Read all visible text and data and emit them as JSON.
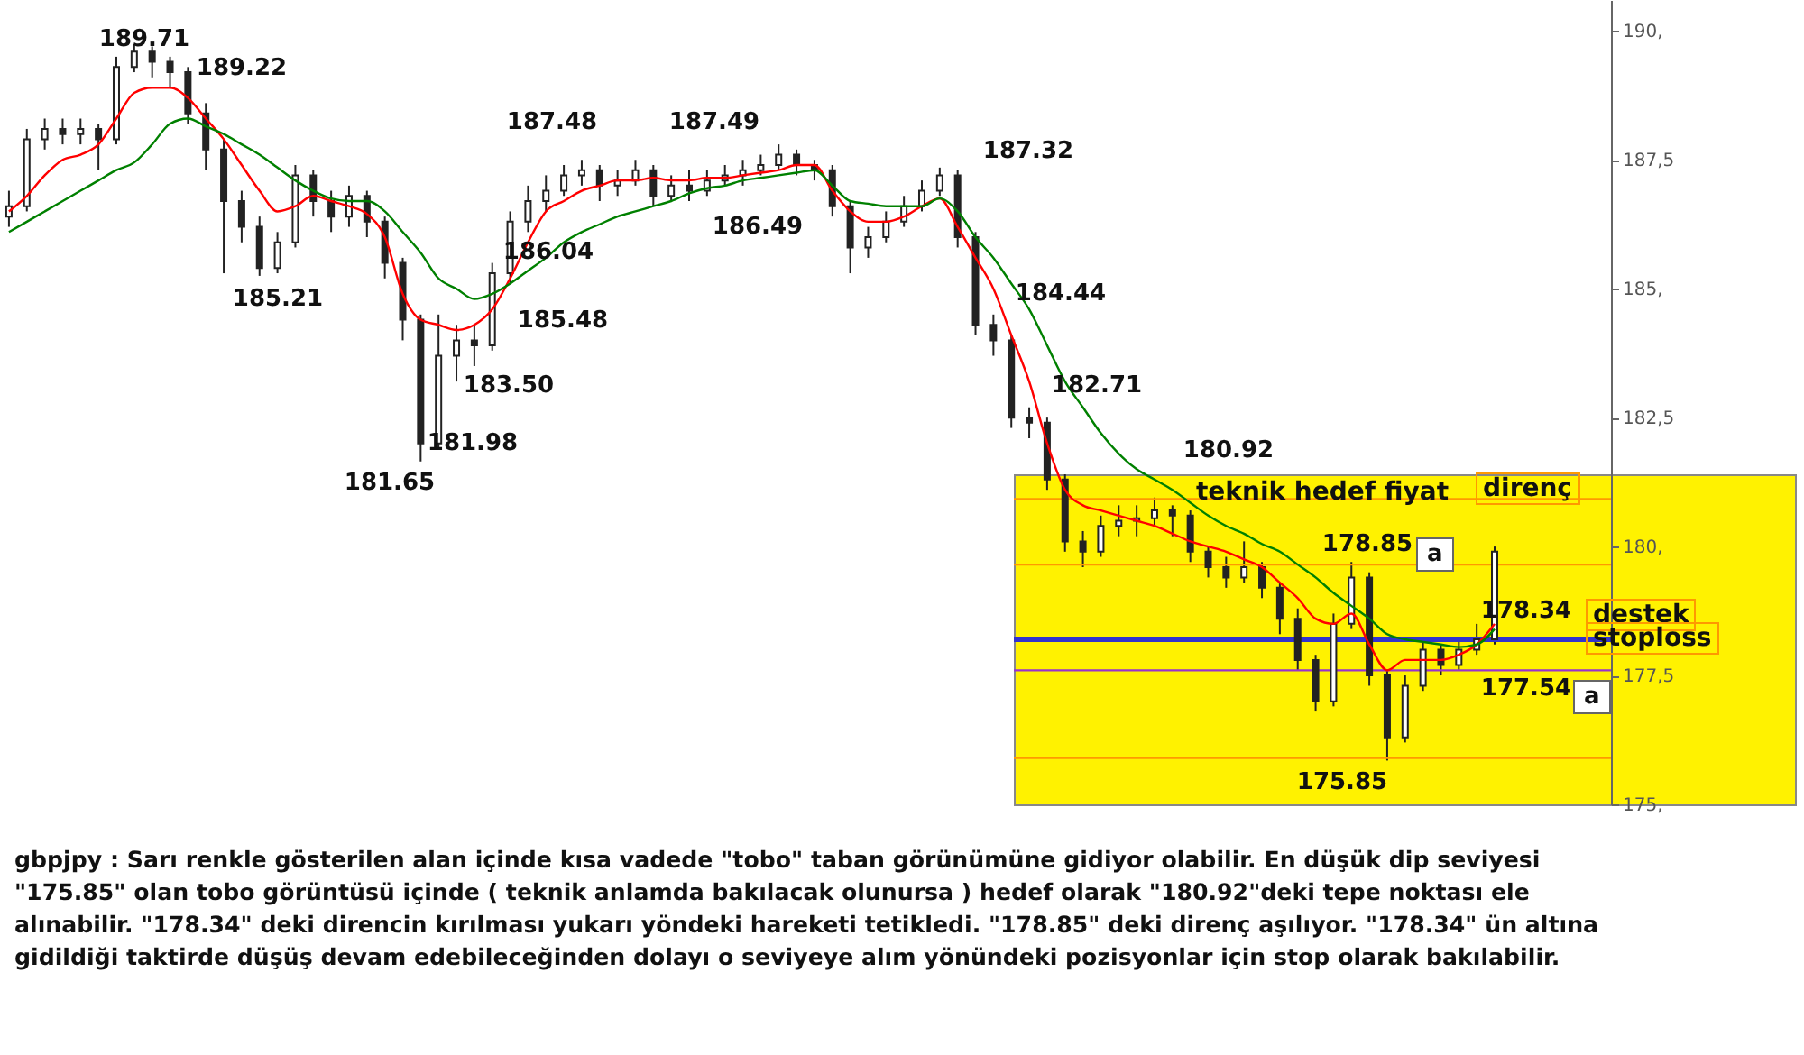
{
  "chart_data": {
    "type": "candlestick",
    "categories": [
      null,
      null,
      null,
      null,
      null,
      null,
      null,
      null,
      null,
      null,
      null,
      null,
      null,
      null,
      null,
      null,
      null,
      null,
      null,
      null,
      null,
      null,
      null,
      null,
      null,
      null,
      null,
      null,
      null,
      null,
      null,
      null,
      null,
      null,
      null,
      null,
      null,
      null,
      null,
      null,
      null,
      null,
      null,
      null,
      null,
      null,
      null,
      null,
      null,
      null,
      null,
      null,
      null,
      null,
      null,
      null,
      null,
      null,
      null,
      null,
      null,
      null,
      null,
      null,
      null,
      null,
      null,
      null,
      null,
      null,
      null,
      null,
      null,
      null,
      null,
      null,
      null,
      null,
      null,
      null,
      null,
      null,
      null,
      null,
      null,
      null,
      null,
      null,
      null,
      null
    ],
    "series": [
      {
        "color": "#222222",
        "ohlc": [
          [
            186.4,
            186.9,
            186.2,
            186.6
          ],
          [
            186.6,
            188.1,
            186.5,
            187.9
          ],
          [
            187.9,
            188.3,
            187.7,
            188.1
          ],
          [
            188.1,
            188.3,
            187.8,
            188.0
          ],
          [
            188.0,
            188.3,
            187.8,
            188.1
          ],
          [
            188.1,
            188.2,
            187.3,
            187.9
          ],
          [
            187.9,
            189.5,
            187.8,
            189.3
          ],
          [
            189.3,
            189.75,
            189.2,
            189.6
          ],
          [
            189.6,
            189.7,
            189.1,
            189.4
          ],
          [
            189.4,
            189.5,
            188.9,
            189.2
          ],
          [
            189.2,
            189.3,
            188.2,
            188.4
          ],
          [
            188.4,
            188.6,
            187.3,
            187.7
          ],
          [
            187.7,
            187.9,
            185.3,
            186.7
          ],
          [
            186.7,
            186.9,
            185.9,
            186.2
          ],
          [
            186.2,
            186.4,
            185.25,
            185.4
          ],
          [
            185.4,
            186.1,
            185.3,
            185.9
          ],
          [
            185.9,
            187.4,
            185.8,
            187.2
          ],
          [
            187.2,
            187.3,
            186.4,
            186.7
          ],
          [
            186.7,
            186.9,
            186.1,
            186.4
          ],
          [
            186.4,
            187.0,
            186.2,
            186.8
          ],
          [
            186.8,
            186.9,
            186.0,
            186.3
          ],
          [
            186.3,
            186.4,
            185.2,
            185.5
          ],
          [
            185.5,
            185.6,
            184.0,
            184.4
          ],
          [
            184.4,
            184.5,
            181.65,
            182.0
          ],
          [
            182.0,
            184.5,
            181.9,
            183.7
          ],
          [
            183.7,
            184.3,
            183.2,
            184.0
          ],
          [
            184.0,
            184.3,
            183.5,
            183.9
          ],
          [
            183.9,
            185.5,
            183.8,
            185.3
          ],
          [
            185.3,
            186.5,
            185.1,
            186.3
          ],
          [
            186.3,
            187.0,
            186.1,
            186.7
          ],
          [
            186.7,
            187.2,
            186.5,
            186.9
          ],
          [
            186.9,
            187.4,
            186.8,
            187.2
          ],
          [
            187.2,
            187.5,
            187.0,
            187.3
          ],
          [
            187.3,
            187.4,
            186.7,
            187.0
          ],
          [
            187.0,
            187.3,
            186.8,
            187.1
          ],
          [
            187.1,
            187.5,
            187.0,
            187.3
          ],
          [
            187.3,
            187.4,
            186.6,
            186.8
          ],
          [
            186.8,
            187.2,
            186.7,
            187.0
          ],
          [
            187.0,
            187.3,
            186.7,
            186.9
          ],
          [
            186.9,
            187.3,
            186.8,
            187.1
          ],
          [
            187.1,
            187.4,
            187.0,
            187.2
          ],
          [
            187.2,
            187.5,
            187.0,
            187.3
          ],
          [
            187.3,
            187.6,
            187.2,
            187.4
          ],
          [
            187.4,
            187.8,
            187.3,
            187.6
          ],
          [
            187.6,
            187.7,
            187.2,
            187.4
          ],
          [
            187.4,
            187.5,
            187.1,
            187.3
          ],
          [
            187.3,
            187.4,
            186.4,
            186.6
          ],
          [
            186.6,
            186.7,
            185.3,
            185.8
          ],
          [
            185.8,
            186.2,
            185.6,
            186.0
          ],
          [
            186.0,
            186.5,
            185.9,
            186.3
          ],
          [
            186.3,
            186.8,
            186.2,
            186.6
          ],
          [
            186.6,
            187.1,
            186.5,
            186.9
          ],
          [
            186.9,
            187.35,
            186.8,
            187.2
          ],
          [
            187.2,
            187.3,
            185.8,
            186.0
          ],
          [
            186.0,
            186.1,
            184.1,
            184.3
          ],
          [
            184.3,
            184.5,
            183.7,
            184.0
          ],
          [
            184.0,
            184.1,
            182.3,
            182.5
          ],
          [
            182.5,
            182.7,
            182.1,
            182.4
          ],
          [
            182.4,
            182.5,
            181.1,
            181.3
          ],
          [
            181.3,
            181.4,
            179.9,
            180.1
          ],
          [
            180.1,
            180.3,
            179.6,
            179.9
          ],
          [
            179.9,
            180.6,
            179.8,
            180.4
          ],
          [
            180.4,
            180.8,
            180.2,
            180.5
          ],
          [
            180.5,
            180.8,
            180.2,
            180.55
          ],
          [
            180.55,
            180.95,
            180.4,
            180.7
          ],
          [
            180.7,
            180.8,
            180.2,
            180.6
          ],
          [
            180.6,
            180.7,
            179.7,
            179.9
          ],
          [
            179.9,
            180.0,
            179.4,
            179.6
          ],
          [
            179.6,
            179.8,
            179.2,
            179.4
          ],
          [
            179.4,
            180.1,
            179.3,
            179.6
          ],
          [
            179.6,
            179.7,
            179.0,
            179.2
          ],
          [
            179.2,
            179.3,
            178.3,
            178.6
          ],
          [
            178.6,
            178.8,
            177.6,
            177.8
          ],
          [
            177.8,
            177.9,
            176.8,
            177.0
          ],
          [
            177.0,
            178.7,
            176.9,
            178.5
          ],
          [
            178.5,
            179.7,
            178.4,
            179.4
          ],
          [
            179.4,
            179.5,
            177.3,
            177.5
          ],
          [
            177.5,
            177.6,
            175.85,
            176.3
          ],
          [
            176.3,
            177.5,
            176.2,
            177.3
          ],
          [
            177.3,
            178.2,
            177.2,
            178.0
          ],
          [
            178.0,
            178.1,
            177.5,
            177.7
          ],
          [
            177.7,
            178.2,
            177.6,
            178.0
          ],
          [
            178.0,
            178.5,
            177.9,
            178.2
          ],
          [
            178.2,
            180.0,
            178.1,
            179.9
          ],
          null,
          null,
          null,
          null,
          null,
          null
        ]
      },
      {
        "type": "line",
        "color": "#ff0000",
        "values": [
          186.5,
          186.8,
          187.2,
          187.5,
          187.6,
          187.8,
          188.3,
          188.8,
          188.9,
          188.9,
          188.7,
          188.3,
          187.9,
          187.4,
          186.9,
          186.5,
          186.6,
          186.8,
          186.7,
          186.6,
          186.45,
          186.0,
          184.9,
          184.4,
          184.3,
          184.2,
          184.3,
          184.6,
          185.2,
          185.9,
          186.5,
          186.7,
          186.9,
          187.0,
          187.1,
          187.1,
          187.15,
          187.1,
          187.1,
          187.15,
          187.15,
          187.2,
          187.25,
          187.3,
          187.4,
          187.4,
          186.9,
          186.5,
          186.3,
          186.3,
          186.4,
          186.6,
          186.75,
          186.2,
          185.6,
          185.0,
          184.1,
          183.2,
          182.0,
          181.1,
          180.8,
          180.7,
          180.6,
          180.5,
          180.4,
          180.25,
          180.1,
          180.0,
          179.9,
          179.75,
          179.6,
          179.3,
          179.0,
          178.6,
          178.5,
          178.7,
          178.1,
          177.6,
          177.8,
          177.8,
          177.8,
          177.9,
          178.1,
          178.5,
          null,
          null,
          null,
          null,
          null,
          null
        ]
      },
      {
        "type": "line",
        "color": "#008000",
        "values": [
          186.1,
          186.3,
          186.5,
          186.7,
          186.9,
          187.1,
          187.3,
          187.45,
          187.8,
          188.2,
          188.3,
          188.15,
          188.0,
          187.8,
          187.6,
          187.35,
          187.1,
          186.9,
          186.75,
          186.7,
          186.7,
          186.5,
          186.1,
          185.7,
          185.2,
          185.0,
          184.8,
          184.9,
          185.1,
          185.35,
          185.6,
          185.9,
          186.1,
          186.25,
          186.4,
          186.5,
          186.6,
          186.7,
          186.85,
          186.95,
          187.0,
          187.1,
          187.15,
          187.2,
          187.25,
          187.3,
          187.0,
          186.7,
          186.65,
          186.6,
          186.6,
          186.6,
          186.75,
          186.5,
          186.0,
          185.6,
          185.1,
          184.6,
          183.9,
          183.2,
          182.7,
          182.2,
          181.8,
          181.5,
          181.3,
          181.1,
          180.85,
          180.6,
          180.4,
          180.25,
          180.05,
          179.9,
          179.65,
          179.4,
          179.1,
          178.85,
          178.6,
          178.3,
          178.2,
          178.15,
          178.1,
          178.05,
          178.1,
          178.4,
          null,
          null,
          null,
          null,
          null,
          null
        ]
      }
    ],
    "ylim": [
      175,
      190.6
    ],
    "yticks": [
      {
        "value": 175,
        "label": "175,"
      },
      {
        "value": 177.5,
        "label": "177,5"
      },
      {
        "value": 180,
        "label": "180,"
      },
      {
        "value": 182.5,
        "label": "182,5"
      },
      {
        "value": 185,
        "label": "185,"
      },
      {
        "value": 187.5,
        "label": "187,5"
      },
      {
        "value": 190,
        "label": "190,"
      }
    ],
    "tick_labels": "y",
    "ref_lines": [
      {
        "axis": "y",
        "value": 180.92,
        "color": "#ff9900"
      },
      {
        "axis": "y",
        "value": 179.65,
        "color": "#ff9900"
      },
      {
        "axis": "y",
        "value": 178.2,
        "color": "#3333cc"
      },
      {
        "axis": "y",
        "value": 177.6,
        "color": "#9933cc"
      },
      {
        "axis": "y",
        "value": 175.9,
        "color": "#ff9900"
      }
    ],
    "annotations": [
      "189.71",
      "189.22",
      "187.48",
      "187.49",
      "187.32",
      "186.04",
      "186.49",
      "185.21",
      "185.48",
      "184.44",
      "183.50",
      "182.71",
      "181.98",
      "181.65",
      "180.92",
      "178.85",
      "178.34",
      "177.54",
      "175.85",
      "teknik hedef fiyat",
      "direnç",
      "destek",
      "stoploss",
      "a",
      "a",
      "gbpjpy : Sarı renkle gösterilen alan içinde kısa vadede \"tobo\" taban görünümüne gidiyor olabilir. En düşük dip seviyesi \"175.85\" olan tobo görüntüsü içinde ( teknik anlamda bakılacak olunursa ) hedef olarak \"180.92\"deki tepe noktası ele alınabilir. \"178.34\" deki direncin kırılması yukarı yöndeki hareketi tetikledi. \"178.85\" deki direnç aşılıyor. \"178.34\" ün altına gidildiği taktirde düşüş devam edebileceğinden dolayı o seviyeye alım yönündeki pozisyonlar için stop olarak bakılabilir."
    ]
  }
}
